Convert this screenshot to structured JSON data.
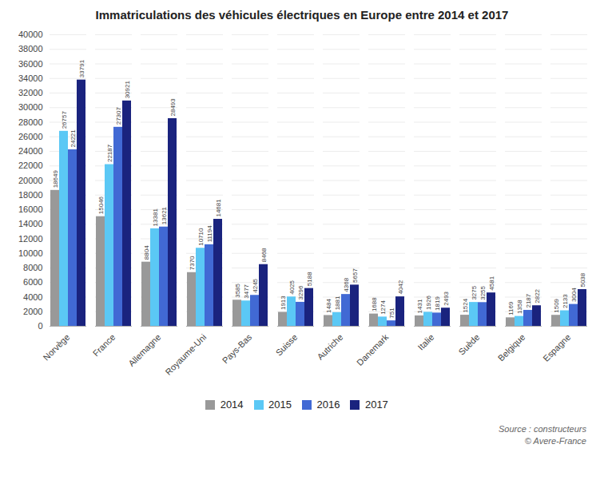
{
  "chart_data": {
    "type": "bar",
    "title": "Immatriculations des véhicules électriques en Europe entre 2014 et 2017",
    "categories": [
      "Norvège",
      "France",
      "Allemagne",
      "Royaume-Uni",
      "Pays-Bas",
      "Suisse",
      "Autriche",
      "Danemark",
      "Italie",
      "Suède",
      "Belgique",
      "Espagne"
    ],
    "series": [
      {
        "name": "2014",
        "color": "#999999",
        "values": [
          18649,
          15046,
          8804,
          7370,
          3585,
          1913,
          1484,
          1688,
          1431,
          1524,
          1169,
          1509
        ]
      },
      {
        "name": "2015",
        "color": "#5bc8f5",
        "values": [
          26757,
          22187,
          13381,
          10710,
          3477,
          4025,
          1881,
          1274,
          1926,
          3275,
          1358,
          2133
        ]
      },
      {
        "name": "2016",
        "color": "#4169d4",
        "values": [
          24221,
          27307,
          13621,
          11194,
          4245,
          3296,
          4368,
          751,
          1819,
          3255,
          2187,
          3004
        ]
      },
      {
        "name": "2017",
        "color": "#1a237e",
        "values": [
          33791,
          30921,
          28493,
          14681,
          8468,
          5188,
          5657,
          4042,
          2493,
          4581,
          2822,
          5038
        ]
      }
    ],
    "ylim": [
      0,
      40000
    ],
    "yticks": [
      0,
      2000,
      4000,
      6000,
      8000,
      10000,
      12000,
      14000,
      16000,
      18000,
      20000,
      22000,
      24000,
      26000,
      28000,
      30000,
      32000,
      34000,
      36000,
      38000,
      40000
    ],
    "grid": true,
    "data_labels": true,
    "legend": "bottom",
    "annotations": [
      "Source : constructeurs",
      "© Avere-France"
    ]
  }
}
